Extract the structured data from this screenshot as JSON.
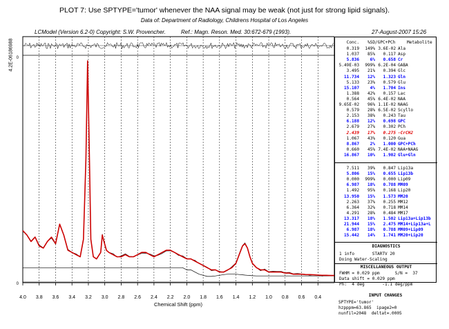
{
  "header": {
    "title": "PLOT 7:  Use SPTYPE='tumor' whenever the NAA signal may be weak (not just for strong lipid signals).",
    "data_of": "Data of: Department of Radiology, Childrens Hospital of Los Angeles",
    "version": "LCModel (Version 6.2-0) Copyright: S.W. Provencher.",
    "reference": "Ref.: Magn. Reson. Med. 30:672-679 (1993).",
    "date": "27-August-2007  15:26",
    "side_label": "4.2E-06186988"
  },
  "table": {
    "header": {
      "conc": "Conc.",
      "sd": "%SD",
      "ratio": "/GPC+PCh",
      "metabolite": "Metabolite"
    },
    "rows_top": [
      {
        "conc": "0.319",
        "sd": "149%",
        "ratio": "3.6E-02",
        "met": "Ala",
        "style": ""
      },
      {
        "conc": "1.037",
        "sd": "85%",
        "ratio": "0.117",
        "met": "Asp",
        "style": ""
      },
      {
        "conc": "5.836",
        "sd": "6%",
        "ratio": "0.658",
        "met": "Cr",
        "style": "blue"
      },
      {
        "conc": "5.49E-03",
        "sd": "999%",
        "ratio": "6.2E-04",
        "met": "GABA",
        "style": ""
      },
      {
        "conc": "3.495",
        "sd": "21%",
        "ratio": "0.394",
        "met": "Glc",
        "style": ""
      },
      {
        "conc": "11.734",
        "sd": "12%",
        "ratio": "1.323",
        "met": "Gln",
        "style": "blue"
      },
      {
        "conc": "5.133",
        "sd": "23%",
        "ratio": "0.579",
        "met": "Glu",
        "style": ""
      },
      {
        "conc": "15.107",
        "sd": "4%",
        "ratio": "1.704",
        "met": "Ins",
        "style": "blue"
      },
      {
        "conc": "1.388",
        "sd": "42%",
        "ratio": "0.157",
        "met": "Lac",
        "style": ""
      },
      {
        "conc": "0.564",
        "sd": "45%",
        "ratio": "6.4E-02",
        "met": "NAA",
        "style": ""
      },
      {
        "conc": "9.65E-02",
        "sd": "96%",
        "ratio": "1.1E-02",
        "met": "NAAG",
        "style": ""
      },
      {
        "conc": "0.579",
        "sd": "28%",
        "ratio": "6.5E-02",
        "met": "Scyllo",
        "style": ""
      },
      {
        "conc": "2.153",
        "sd": "38%",
        "ratio": "0.243",
        "met": "Tau",
        "style": ""
      },
      {
        "conc": "6.188",
        "sd": "12%",
        "ratio": "0.698",
        "met": "GPC",
        "style": "blue"
      },
      {
        "conc": "2.679",
        "sd": "27%",
        "ratio": "0.302",
        "met": "PCh",
        "style": ""
      },
      {
        "conc": "2.439",
        "sd": "17%",
        "ratio": "0.275",
        "met": "-CrCH2",
        "style": "red"
      },
      {
        "conc": "1.067",
        "sd": "43%",
        "ratio": "0.120",
        "met": "Gua",
        "style": ""
      },
      {
        "conc": "8.867",
        "sd": "2%",
        "ratio": "1.000",
        "met": "GPC+PCh",
        "style": "blue"
      },
      {
        "conc": "0.660",
        "sd": "45%",
        "ratio": "7.4E-02",
        "met": "NAA+NAAG",
        "style": ""
      },
      {
        "conc": "16.867",
        "sd": "10%",
        "ratio": "1.902",
        "met": "Glu+Gln",
        "style": "blue"
      }
    ],
    "rows_lipid": [
      {
        "conc": "7.511",
        "sd": "39%",
        "ratio": "0.847",
        "met": "Lip13a",
        "style": ""
      },
      {
        "conc": "5.806",
        "sd": "15%",
        "ratio": "0.655",
        "met": "Lip13b",
        "style": "blue"
      },
      {
        "conc": "0.000",
        "sd": "999%",
        "ratio": "0.000",
        "met": "Lip09",
        "style": ""
      },
      {
        "conc": "6.987",
        "sd": "18%",
        "ratio": "0.788",
        "met": "MM09",
        "style": "blue"
      },
      {
        "conc": "1.492",
        "sd": "95%",
        "ratio": "0.168",
        "met": "Lip20",
        "style": ""
      },
      {
        "conc": "13.950",
        "sd": "15%",
        "ratio": "1.573",
        "met": "MM20",
        "style": "blue"
      },
      {
        "conc": "2.263",
        "sd": "37%",
        "ratio": "0.255",
        "met": "MM12",
        "style": ""
      },
      {
        "conc": "6.364",
        "sd": "32%",
        "ratio": "0.718",
        "met": "MM14",
        "style": ""
      },
      {
        "conc": "4.291",
        "sd": "28%",
        "ratio": "0.484",
        "met": "MM17",
        "style": ""
      },
      {
        "conc": "13.317",
        "sd": "18%",
        "ratio": "1.502",
        "met": "Lip13a+Lip13b",
        "style": "blue"
      },
      {
        "conc": "21.944",
        "sd": "15%",
        "ratio": "2.475",
        "met": "MM14+Lip13a+L",
        "style": "blue"
      },
      {
        "conc": "6.987",
        "sd": "18%",
        "ratio": "0.788",
        "met": "MM09+Lip09",
        "style": "blue"
      },
      {
        "conc": "15.442",
        "sd": "14%",
        "ratio": "1.741",
        "met": "MM20+Lip20",
        "style": "blue"
      }
    ]
  },
  "diagnostics": {
    "title": "DIAGNOSTICS",
    "line1": "1 info       STARTV 20",
    "line2": "Doing Water-Scaling"
  },
  "misc": {
    "title": "MISCELLANEOUS OUTPUT",
    "line1": "FWHM = 0.029 ppm      S/N =  37",
    "line2": "Data shift = 0.029 ppm",
    "line3": "Ph:  4 deg       -1.1 deg/ppm"
  },
  "inputs": {
    "title": "INPUT CHANGES",
    "line1": "SPTYPE='tumor'",
    "line2": "hzpppm=63.865  ipage2=0",
    "line3": "nunfil=2048  deltat=.0005"
  },
  "colors": {
    "fit": "#cc0000",
    "data": "#000000",
    "highlight": "#0000ff",
    "warning": "#e00000"
  },
  "chart_data": {
    "type": "line",
    "xlabel": "Chemical Shift (ppm)",
    "x_ticks": [
      "4.0",
      "3.8",
      "3.6",
      "3.4",
      "3.2",
      "3.0",
      "2.8",
      "2.6",
      "2.4",
      "2.2",
      "2.0",
      "1.8",
      "1.6",
      "1.4",
      "1.2",
      "1.0",
      "0.8",
      "0.6",
      "0.4"
    ],
    "xlim": [
      4.0,
      0.2
    ],
    "x_reversed": true,
    "x": [
      4.0,
      3.95,
      3.9,
      3.85,
      3.8,
      3.75,
      3.7,
      3.65,
      3.6,
      3.55,
      3.5,
      3.45,
      3.4,
      3.35,
      3.3,
      3.26,
      3.23,
      3.21,
      3.19,
      3.17,
      3.14,
      3.1,
      3.05,
      3.03,
      3.01,
      2.98,
      2.95,
      2.9,
      2.85,
      2.8,
      2.75,
      2.7,
      2.65,
      2.6,
      2.55,
      2.5,
      2.45,
      2.4,
      2.35,
      2.3,
      2.25,
      2.2,
      2.15,
      2.1,
      2.05,
      2.0,
      1.95,
      1.9,
      1.85,
      1.8,
      1.75,
      1.7,
      1.65,
      1.6,
      1.55,
      1.5,
      1.45,
      1.4,
      1.35,
      1.32,
      1.29,
      1.26,
      1.23,
      1.2,
      1.15,
      1.1,
      1.05,
      1.0,
      0.95,
      0.9,
      0.85,
      0.8,
      0.75,
      0.7,
      0.65,
      0.6,
      0.55,
      0.5,
      0.45,
      0.4,
      0.35,
      0.3,
      0.25,
      0.2
    ],
    "series": [
      {
        "values": [
          0.22,
          0.2,
          0.17,
          0.19,
          0.15,
          0.14,
          0.17,
          0.19,
          0.16,
          0.25,
          0.2,
          0.13,
          0.12,
          0.11,
          0.1,
          0.18,
          0.55,
          1.0,
          0.62,
          0.18,
          0.1,
          0.09,
          0.12,
          0.2,
          0.17,
          0.13,
          0.12,
          0.11,
          0.1,
          0.1,
          0.11,
          0.1,
          0.1,
          0.11,
          0.12,
          0.12,
          0.11,
          0.1,
          0.11,
          0.12,
          0.13,
          0.13,
          0.12,
          0.11,
          0.1,
          0.09,
          0.09,
          0.08,
          0.07,
          0.06,
          0.05,
          0.04,
          0.04,
          0.03,
          0.03,
          0.04,
          0.05,
          0.07,
          0.12,
          0.15,
          0.16,
          0.14,
          0.1,
          0.07,
          0.05,
          0.04,
          0.04,
          0.03,
          0.03,
          0.03,
          0.03,
          0.025,
          0.025,
          0.02,
          0.02,
          0.02,
          0.018,
          0.018,
          0.017,
          0.016,
          0.015,
          0.015,
          0.014,
          0.014
        ]
      },
      {
        "values": [
          0.05,
          0.05,
          0.05,
          0.05,
          0.05,
          0.05,
          0.05,
          0.05,
          0.05,
          0.05,
          0.05,
          0.05,
          0.05,
          0.05,
          0.05,
          0.05,
          0.05,
          0.05,
          0.05,
          0.05,
          0.05,
          0.05,
          0.05,
          0.05,
          0.05,
          0.05,
          0.05,
          0.05,
          0.05,
          0.05,
          0.05,
          0.05,
          0.05,
          0.05,
          0.05,
          0.05,
          0.05,
          0.05,
          0.05,
          0.05,
          0.05,
          0.05,
          0.05,
          0.05,
          0.05,
          0.04,
          0.04,
          0.03,
          0.02,
          0.015,
          0.01,
          0.01,
          0.012,
          0.015,
          0.018,
          0.02,
          0.02,
          0.02,
          0.018,
          0.017,
          0.016,
          0.015,
          0.014,
          0.013,
          0.012,
          0.012,
          0.012,
          0.012,
          0.012,
          0.012,
          0.012,
          0.012,
          0.012,
          0.012,
          0.012,
          0.012,
          0.012,
          0.012,
          0.012,
          0.012,
          0.012,
          0.012,
          0.012,
          0.012
        ]
      }
    ]
  }
}
